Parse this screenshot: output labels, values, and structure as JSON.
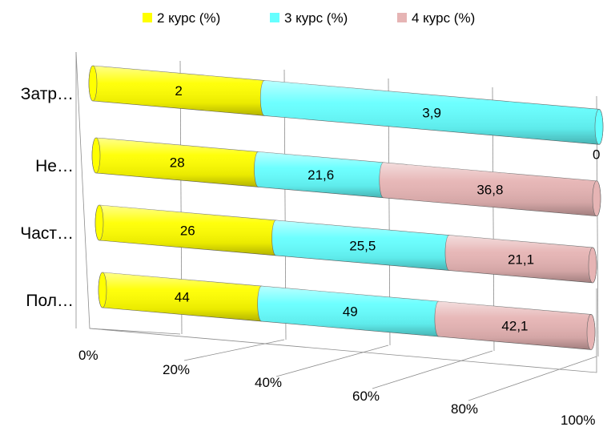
{
  "chart_data": {
    "type": "bar",
    "orientation": "horizontal",
    "stacking": "percent",
    "style": "3d-cylinder",
    "categories": [
      "Пол…",
      "Част…",
      "Не…",
      "Затр…"
    ],
    "series": [
      {
        "name": "2 курс (%)",
        "color": "#ffff00",
        "values": [
          44,
          26,
          28,
          2
        ]
      },
      {
        "name": "3 курс (%)",
        "color": "#66ffff",
        "values": [
          49,
          25.5,
          21.6,
          3.9
        ]
      },
      {
        "name": "4 курс (%)",
        "color": "#e6b4b4",
        "values": [
          42.1,
          21.1,
          36.8,
          0
        ]
      }
    ],
    "data_labels": [
      [
        "44",
        "26",
        "28",
        "2"
      ],
      [
        "49",
        "25,5",
        "21,6",
        "3,9"
      ],
      [
        "42,1",
        "21,1",
        "36,8",
        "0"
      ]
    ],
    "x_ticks": [
      "0%",
      "20%",
      "40%",
      "60%",
      "80%",
      "100%"
    ],
    "xlim": [
      0,
      100
    ],
    "legend_position": "top",
    "grid": true
  }
}
